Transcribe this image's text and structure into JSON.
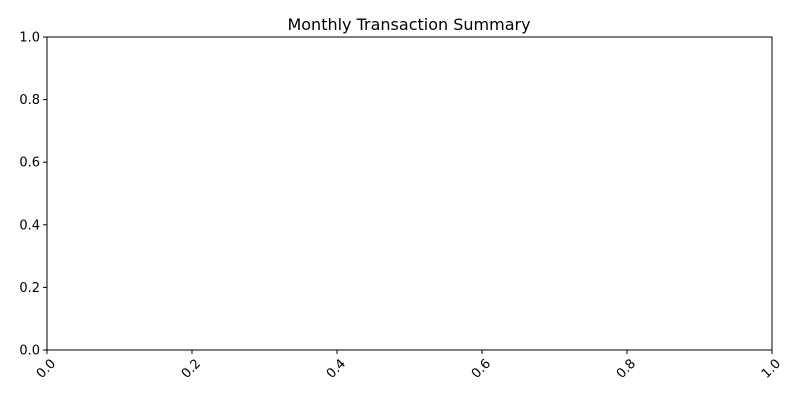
{
  "chart_data": {
    "type": "line",
    "title": "Monthly Transaction Summary",
    "xlabel": "",
    "ylabel": "",
    "xlim": [
      0.0,
      1.0
    ],
    "ylim": [
      0.0,
      1.0
    ],
    "x_ticks": [
      "0.0",
      "0.2",
      "0.4",
      "0.6",
      "0.8",
      "1.0"
    ],
    "y_ticks": [
      "0.0",
      "0.2",
      "0.4",
      "0.6",
      "0.8",
      "1.0"
    ],
    "x_tick_rotation": 45,
    "grid": false,
    "legend": "none",
    "series": []
  }
}
